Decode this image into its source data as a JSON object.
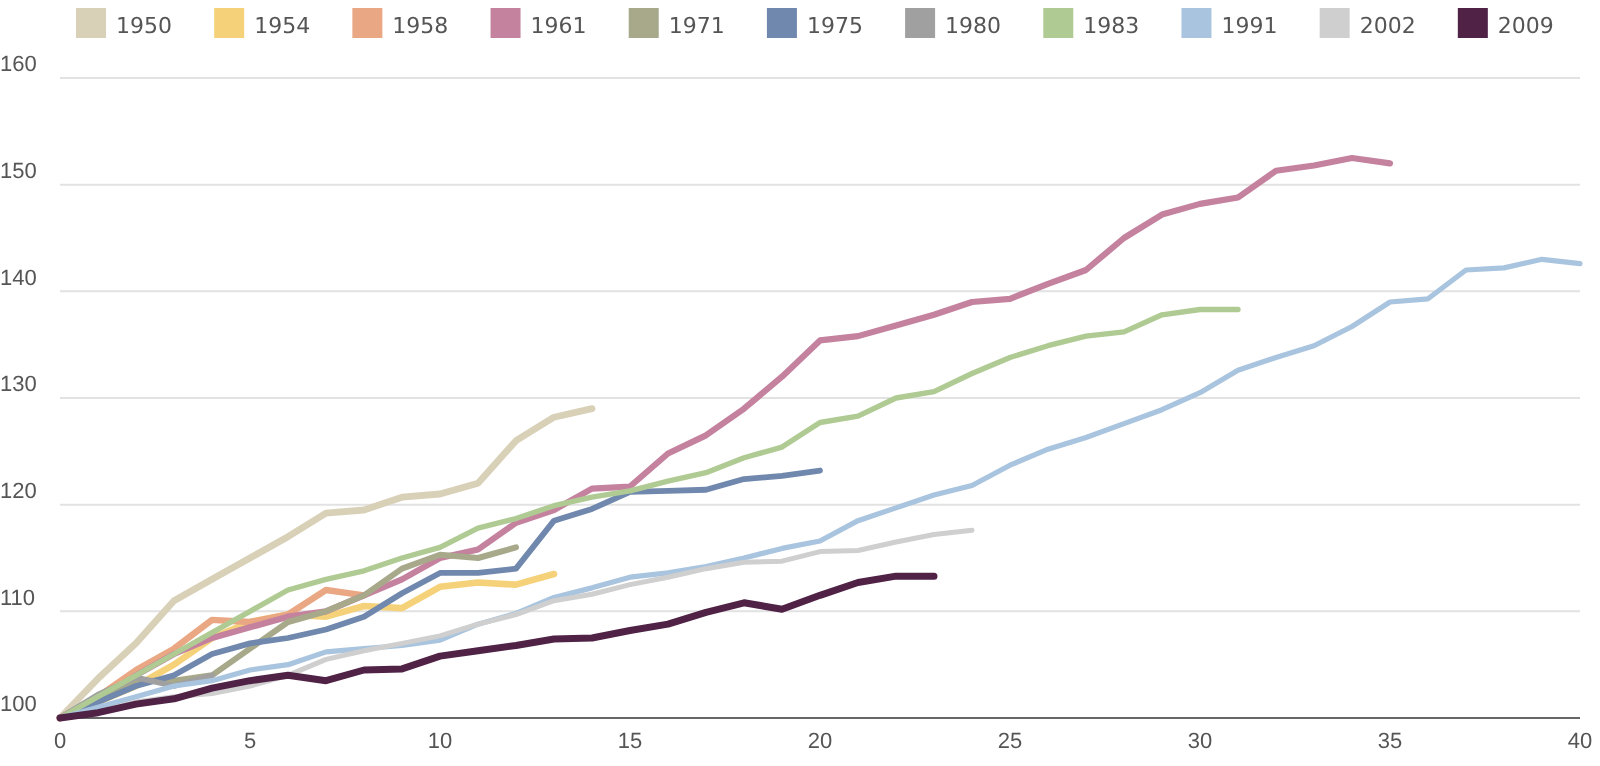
{
  "chart_data": {
    "type": "line",
    "xlim": [
      0,
      40
    ],
    "ylim": [
      100,
      160
    ],
    "xticks": [
      0,
      5,
      10,
      15,
      20,
      25,
      30,
      35,
      40
    ],
    "yticks": [
      100,
      110,
      120,
      130,
      140,
      150,
      160
    ],
    "grid": "y",
    "legend": "top",
    "line_style": "solid",
    "marker": "none",
    "series": [
      {
        "name": "1950",
        "color": "#d9d0b8",
        "x": [
          0,
          1,
          2,
          3,
          4,
          5,
          6,
          7,
          8,
          9,
          10,
          11,
          12,
          13,
          14
        ],
        "values": [
          100,
          103.7,
          107,
          111,
          113,
          115,
          117,
          119.2,
          119.5,
          120.7,
          121,
          122,
          126,
          128.2,
          129
        ]
      },
      {
        "name": "1954",
        "color": "#f5d27a",
        "x": [
          0,
          1,
          2,
          3,
          4,
          5,
          6,
          7,
          8,
          9,
          10,
          11,
          12,
          13
        ],
        "values": [
          100,
          101.5,
          103,
          105,
          107.5,
          109,
          109.7,
          109.5,
          110.5,
          110.3,
          112.3,
          112.7,
          112.5,
          113.5
        ]
      },
      {
        "name": "1958",
        "color": "#eaa784",
        "x": [
          0,
          1,
          2,
          3,
          4,
          5,
          6,
          7,
          8
        ],
        "values": [
          100,
          102,
          104.5,
          106.5,
          109.2,
          109,
          109.7,
          112,
          111.5
        ]
      },
      {
        "name": "1961",
        "color": "#c4829f",
        "x": [
          0,
          1,
          2,
          3,
          4,
          5,
          6,
          7,
          8,
          9,
          10,
          11,
          12,
          13,
          14,
          15,
          16,
          17,
          18,
          19,
          20,
          21,
          22,
          23,
          24,
          25,
          26,
          27,
          28,
          29,
          30,
          31,
          32,
          33,
          34,
          35
        ],
        "values": [
          100,
          101.5,
          104,
          106,
          107.5,
          108.5,
          109.5,
          110,
          111.5,
          113,
          115,
          115.8,
          118.3,
          119.5,
          121.5,
          121.7,
          124.8,
          126.5,
          129,
          132,
          135.4,
          135.8,
          136.8,
          137.8,
          139,
          139.3,
          140.7,
          142,
          145,
          147.2,
          148.2,
          148.8,
          151.3,
          151.8,
          152.5,
          152
        ]
      },
      {
        "name": "1971",
        "color": "#a7a98a",
        "x": [
          0,
          1,
          2,
          3,
          4,
          5,
          6,
          7,
          8,
          9,
          10,
          11,
          12
        ],
        "values": [
          100,
          102,
          103.5,
          103.5,
          104,
          106.5,
          109,
          110,
          111.5,
          114,
          115.3,
          115,
          116
        ]
      },
      {
        "name": "1975",
        "color": "#7088ad",
        "x": [
          0,
          1,
          2,
          3,
          4,
          5,
          6,
          7,
          8,
          9,
          10,
          11,
          12,
          13,
          14,
          15,
          16,
          17,
          18,
          19,
          20
        ],
        "values": [
          100,
          101.5,
          103,
          104,
          106,
          107,
          107.5,
          108.3,
          109.5,
          111.7,
          113.6,
          113.6,
          114,
          118.5,
          119.6,
          121.2,
          121.3,
          121.4,
          122.4,
          122.7,
          123.2
        ]
      },
      {
        "name": "1980",
        "color": "#a0a0a0",
        "x": [
          0,
          1,
          2,
          3,
          4
        ],
        "values": [
          100,
          102.2,
          103.8,
          103,
          104
        ]
      },
      {
        "name": "1983",
        "color": "#afcb93",
        "x": [
          0,
          1,
          2,
          3,
          4,
          5,
          6,
          7,
          8,
          9,
          10,
          11,
          12,
          13,
          14,
          15,
          16,
          17,
          18,
          19,
          20,
          21,
          22,
          23,
          24,
          25,
          26,
          27,
          28,
          29,
          30,
          31
        ],
        "values": [
          100,
          102,
          104,
          106,
          108,
          110,
          112,
          113,
          113.8,
          115,
          116,
          117.8,
          118.7,
          119.9,
          120.7,
          121.3,
          122.2,
          123,
          124.4,
          125.4,
          127.7,
          128.3,
          130,
          130.6,
          132.3,
          133.8,
          134.9,
          135.8,
          136.2,
          137.8,
          138.3,
          138.3
        ]
      },
      {
        "name": "1991",
        "color": "#a9c4de",
        "x": [
          0,
          1,
          2,
          3,
          4,
          5,
          6,
          7,
          8,
          9,
          10,
          11,
          12,
          13,
          14,
          15,
          16,
          17,
          18,
          19,
          20,
          21,
          22,
          23,
          24,
          25,
          26,
          27,
          28,
          29,
          30,
          31,
          32,
          33,
          34,
          35,
          36,
          37,
          38,
          39,
          40
        ],
        "values": [
          100,
          101,
          102,
          103,
          103.5,
          104.5,
          105,
          106.2,
          106.5,
          106.8,
          107.3,
          108.8,
          109.8,
          111.3,
          112.2,
          113.2,
          113.6,
          114.2,
          115,
          115.9,
          116.6,
          118.5,
          119.7,
          120.9,
          121.8,
          123.7,
          125.2,
          126.3,
          127.6,
          128.9,
          130.5,
          132.6,
          133.8,
          134.9,
          136.7,
          139,
          139.3,
          142,
          142.2,
          143,
          142.6
        ]
      },
      {
        "name": "2002",
        "color": "#cfcfcf",
        "x": [
          0,
          1,
          2,
          3,
          4,
          5,
          6,
          7,
          8,
          9,
          10,
          11,
          12,
          13,
          14,
          15,
          16,
          17,
          18,
          19,
          20,
          21,
          22,
          23,
          24
        ],
        "values": [
          100,
          100.5,
          101.5,
          102,
          102.3,
          103,
          104,
          105.5,
          106.3,
          107,
          107.7,
          108.8,
          109.7,
          111,
          111.6,
          112.5,
          113.2,
          114,
          114.6,
          114.7,
          115.6,
          115.7,
          116.5,
          117.2,
          117.6
        ]
      },
      {
        "name": "2009",
        "color": "#4f2246",
        "x": [
          0,
          1,
          2,
          3,
          4,
          5,
          6,
          7,
          8,
          9,
          10,
          11,
          12,
          13,
          14,
          15,
          16,
          17,
          18,
          19,
          20,
          21,
          22,
          23
        ],
        "values": [
          100,
          100.5,
          101.3,
          101.8,
          102.8,
          103.5,
          104,
          103.5,
          104.5,
          104.6,
          105.8,
          106.3,
          106.8,
          107.4,
          107.5,
          108.2,
          108.8,
          109.9,
          110.8,
          110.2,
          111.5,
          112.7,
          113.3,
          113.3
        ]
      }
    ]
  }
}
